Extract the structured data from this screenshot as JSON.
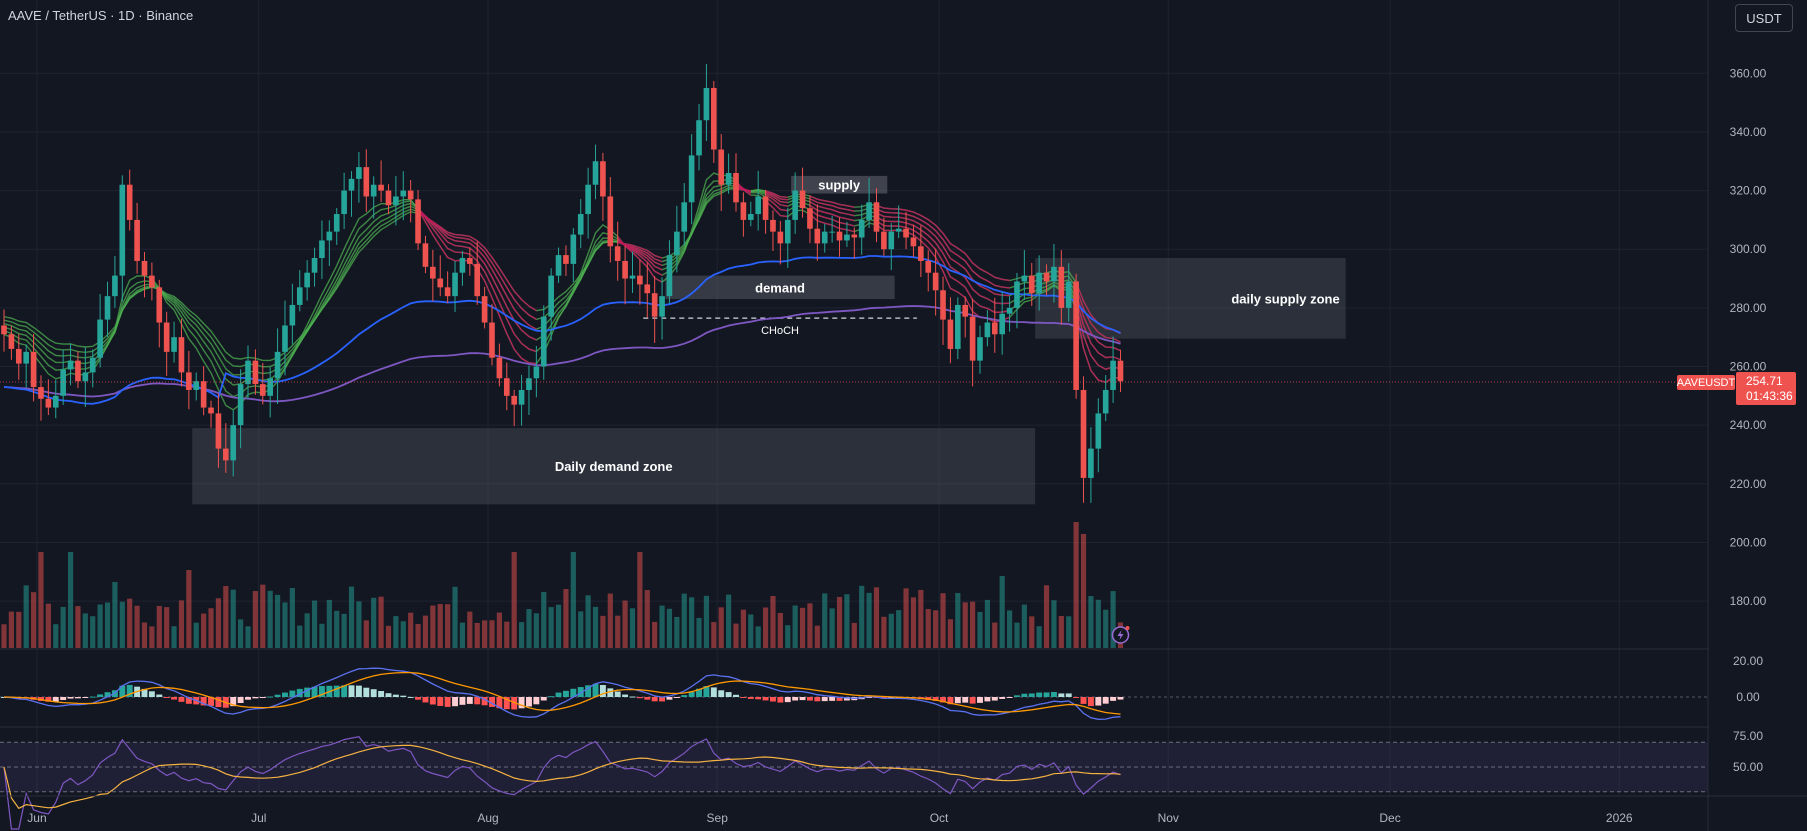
{
  "header": {
    "title": "AAVE / TetherUS · 1D · Binance",
    "currency_button": "USDT"
  },
  "chart_data": {
    "type": "candlestick",
    "symbol": "AAVEUSDT",
    "price_axis": {
      "min": 164,
      "max": 385,
      "ticks": [
        360,
        340,
        320,
        300,
        280,
        260,
        240,
        220,
        200,
        180
      ],
      "tick_labels": [
        "360.00",
        "340.00",
        "320.00",
        "300.00",
        "280.00",
        "260.00",
        "240.00",
        "220.00",
        "200.00",
        "180.00"
      ]
    },
    "time_axis": {
      "start": "2025-05-27",
      "end": "2026-01-13",
      "ticks": [
        "2025-06-01",
        "2025-07-01",
        "2025-08-01",
        "2025-09-01",
        "2025-10-01",
        "2025-11-01",
        "2025-12-01",
        "2026-01-01"
      ],
      "tick_labels": [
        "Jun",
        "Jul",
        "Aug",
        "Sep",
        "Oct",
        "Nov",
        "Dec",
        "2026"
      ]
    },
    "last_price": {
      "label": "AAVEUSDT",
      "value": "254.71",
      "countdown": "01:43:36",
      "price": 254.71
    },
    "closes": [
      271,
      266,
      261,
      265,
      253,
      249,
      246,
      250,
      259,
      262,
      255,
      258,
      263,
      276,
      284,
      291,
      322,
      310,
      296,
      291,
      287,
      275,
      265,
      270,
      258,
      252,
      255,
      246,
      244,
      232,
      228,
      240,
      254,
      262,
      254,
      250,
      256,
      265,
      274,
      281,
      287,
      292,
      297,
      303,
      306,
      312,
      320,
      324,
      328,
      318,
      322,
      320,
      315,
      318,
      320,
      317,
      302,
      294,
      290,
      287,
      284,
      292,
      297,
      295,
      284,
      275,
      263,
      256,
      250,
      247,
      252,
      256,
      260,
      277,
      291,
      298,
      295,
      305,
      312,
      322,
      330,
      318,
      301,
      296,
      290,
      291,
      288,
      285,
      277,
      284,
      298,
      306,
      316,
      332,
      344,
      355,
      334,
      322,
      326,
      316,
      310,
      312,
      318,
      310,
      306,
      302,
      310,
      320,
      314,
      307,
      302,
      306,
      306,
      303,
      305,
      304,
      310,
      316,
      306,
      300,
      306,
      307,
      304,
      301,
      296,
      292,
      286,
      276,
      266,
      281,
      277,
      262,
      270,
      275,
      271,
      278,
      280,
      289,
      291,
      285,
      292,
      289,
      294,
      280,
      289,
      252,
      222,
      232,
      244,
      252,
      262,
      255
    ],
    "supply_zone_label": "supply",
    "demand_zone_label": "demand",
    "choch_label": "CHoCH",
    "daily_supply_zone_label": "daily supply zone",
    "daily_demand_zone_label": "Daily demand zone",
    "supply_zone": {
      "from": "2025-09-11",
      "to": "2025-09-24",
      "low": 319,
      "high": 325
    },
    "demand_zone": {
      "from": "2025-08-25",
      "to": "2025-09-25",
      "low": 283,
      "high": 291
    },
    "choch_line": {
      "from": "2025-08-22",
      "to": "2025-09-28",
      "price": 276.5
    },
    "daily_supply_zone": {
      "from": "2025-10-14",
      "to": "2025-11-25",
      "low": 269.5,
      "high": 297
    },
    "daily_demand_zone": {
      "from": "2025-06-22",
      "to": "2025-10-14",
      "low": 213,
      "high": 239
    },
    "colors": {
      "up": "#26a69a",
      "down": "#ef5350",
      "ma200": "#7e57c2",
      "ma100": "#2962ff",
      "ribbon_bull": "#4caf50",
      "ribbon_bear": "#c2185b",
      "macd": "#5b72f0",
      "signal": "#ff9800",
      "rsi": "#7e57c2",
      "rsi_ma": "#f5b342"
    },
    "macd_axis": {
      "ticks": [
        "20.00",
        "0.00"
      ],
      "tick_values": [
        20,
        0
      ]
    },
    "rsi_axis": {
      "ticks": [
        "75.00",
        "50.00"
      ],
      "tick_values": [
        75,
        50
      ]
    }
  }
}
